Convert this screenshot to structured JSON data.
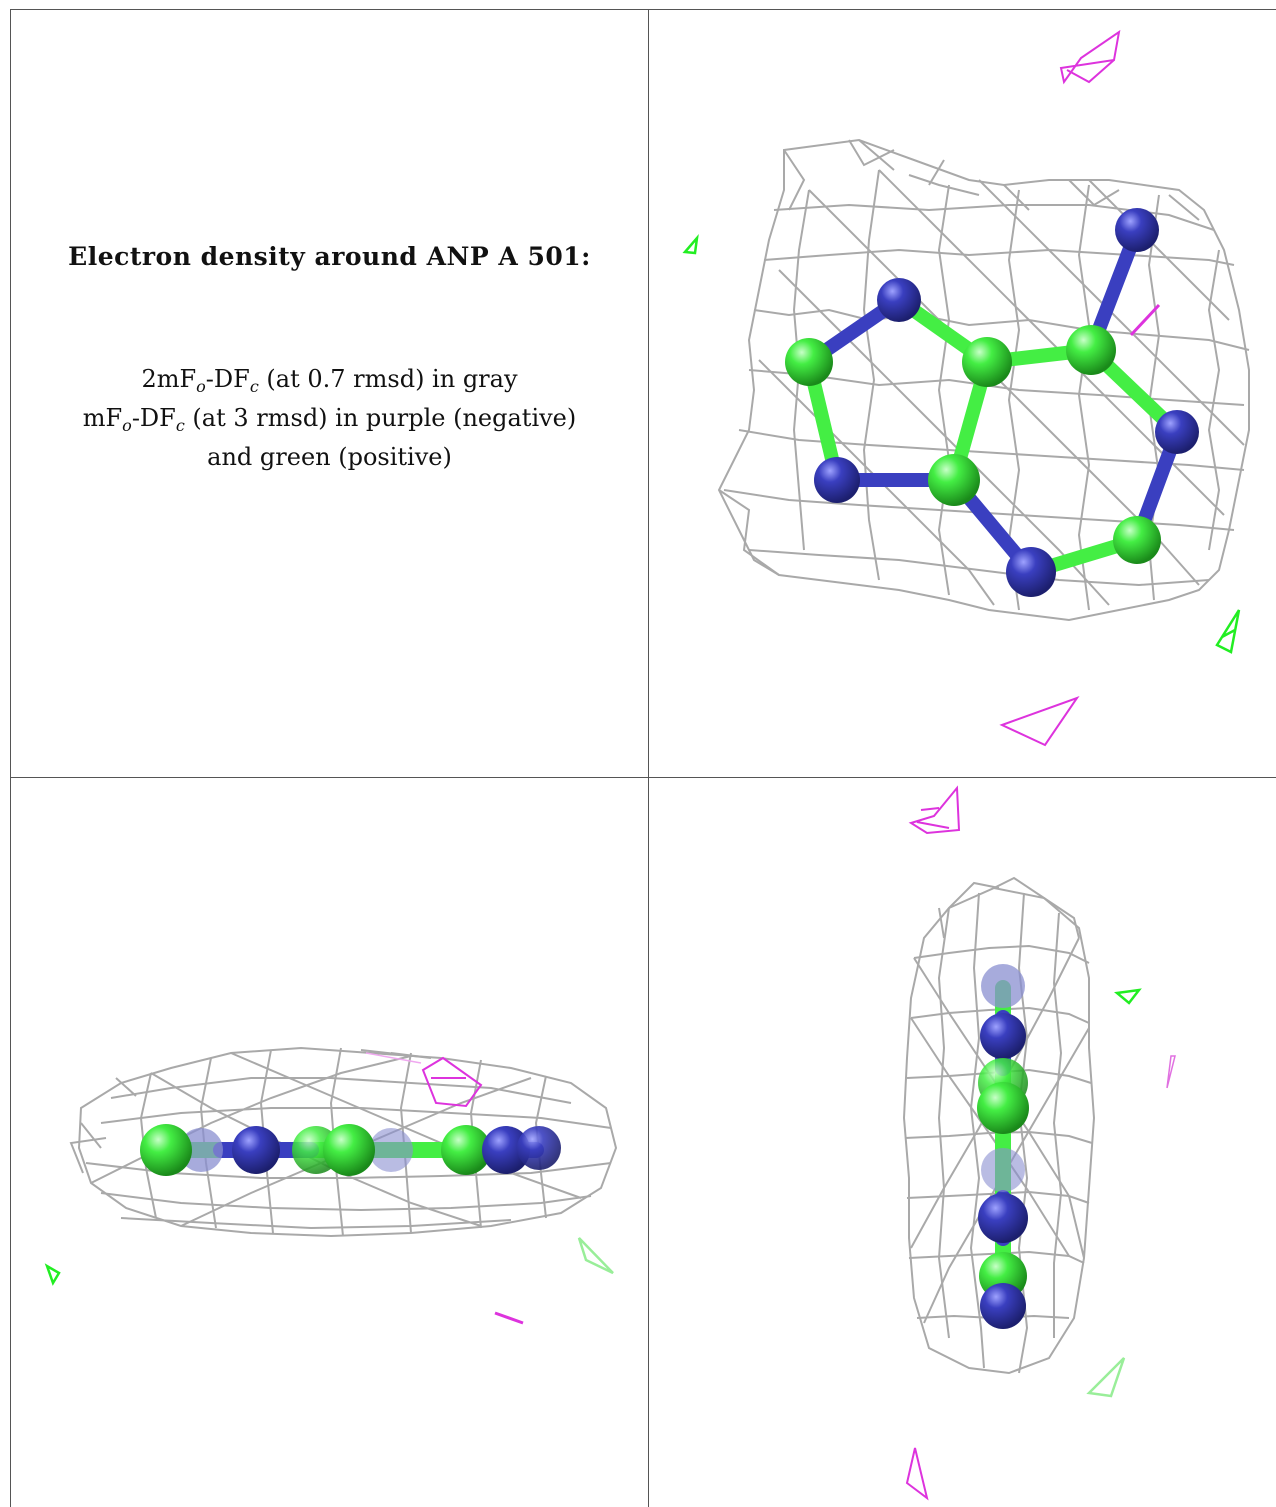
{
  "figure": {
    "title": "Electron density around ANP A 501:",
    "legend": [
      {
        "prefix": "2mF",
        "s1": "o",
        "mid": "-DF",
        "s2": "c",
        "rest": " (at 0.7 rmsd) in gray"
      },
      {
        "prefix": "mF",
        "s1": "o",
        "mid": "-DF",
        "s2": "c",
        "rest": " (at 3 rmsd) in purple (negative)"
      },
      {
        "prefix": "",
        "s1": "",
        "mid": "",
        "s2": "",
        "rest": "and green (positive)"
      }
    ]
  },
  "colors": {
    "mesh_2fofc": "#a9a9a9",
    "positive_density": "#22ee22",
    "negative_density": "#dd33dd",
    "carbon": "#44ee44",
    "nitrogen": "#3a3fc0"
  }
}
